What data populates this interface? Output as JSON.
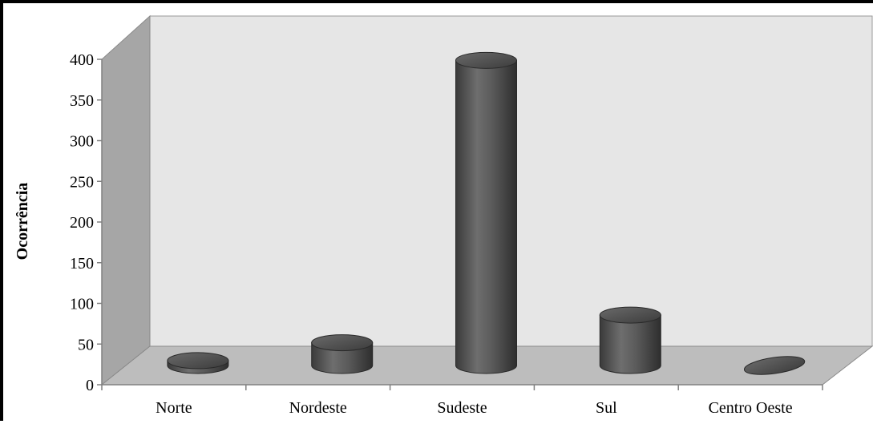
{
  "chart_data": {
    "type": "bar",
    "style": "3d-cylinder",
    "categories": [
      "Norte",
      "Nordeste",
      "Sudeste",
      "Sul",
      "Centro Oeste"
    ],
    "values": [
      6,
      28,
      375,
      62,
      0
    ],
    "title": "",
    "xlabel": "",
    "ylabel": "Ocorrência",
    "ylim": [
      0,
      400
    ],
    "yticks": [
      0,
      50,
      100,
      150,
      200,
      250,
      300,
      350,
      400
    ],
    "grid": false,
    "legend": "none",
    "colors": {
      "bar": "#555555",
      "back_wall": "#e6e6e6",
      "side_wall": "#a6a6a6",
      "floor": "#bdbdbd"
    }
  }
}
